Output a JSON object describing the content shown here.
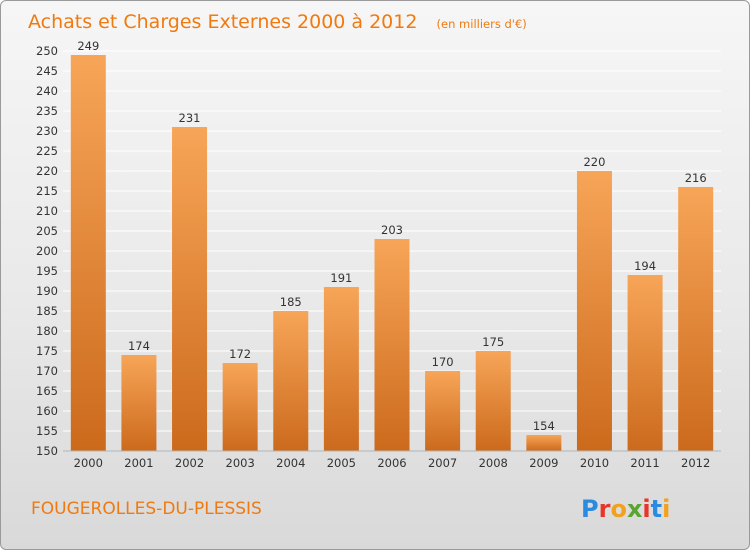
{
  "chart_data": {
    "type": "bar",
    "title": "Achats et Charges Externes 2000 à 2012",
    "subtitle": "(en milliers d'€)",
    "categories": [
      "2000",
      "2001",
      "2002",
      "2003",
      "2004",
      "2005",
      "2006",
      "2007",
      "2008",
      "2009",
      "2010",
      "2011",
      "2012"
    ],
    "values": [
      249,
      174,
      231,
      172,
      185,
      191,
      203,
      170,
      175,
      154,
      220,
      194,
      216
    ],
    "ylim": [
      150,
      250
    ],
    "yticks": [
      150,
      155,
      160,
      165,
      170,
      175,
      180,
      185,
      190,
      195,
      200,
      205,
      210,
      215,
      220,
      225,
      230,
      235,
      240,
      245,
      250
    ],
    "grid": true,
    "bar_color": "#f08a2c",
    "xlabel": "",
    "ylabel": ""
  },
  "footer": {
    "commune": "FOUGEROLLES-DU-PLESSIS"
  },
  "logo": {
    "letters": [
      "P",
      "r",
      "o",
      "x",
      "i",
      "t",
      "i"
    ],
    "colors": [
      "#2b8be0",
      "#e8352a",
      "#f2a11c",
      "#5aa52f",
      "#e8352a",
      "#2b8be0",
      "#f2a11c"
    ]
  }
}
